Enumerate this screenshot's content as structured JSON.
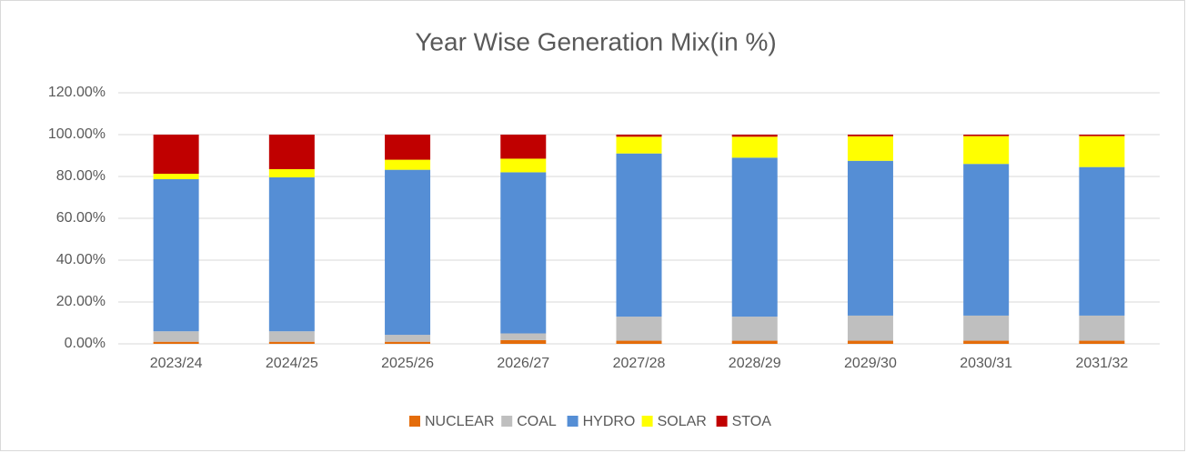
{
  "chart_data": {
    "type": "stacked_bar",
    "title": "Year Wise Generation Mix(in %)",
    "categories": [
      "2023/24",
      "2024/25",
      "2025/26",
      "2026/27",
      "2027/28",
      "2028/29",
      "2029/30",
      "2030/31",
      "2031/32"
    ],
    "series": [
      {
        "name": "NUCLEAR",
        "color": "#e46c0a",
        "values": [
          1,
          1,
          1,
          1.8,
          1.5,
          1.5,
          1.5,
          1.5,
          1.5
        ]
      },
      {
        "name": "COAL",
        "color": "#bfbfbf",
        "values": [
          5,
          5,
          3.3,
          3.2,
          11.5,
          11.5,
          12,
          12,
          12
        ]
      },
      {
        "name": "HYDRO",
        "color": "#558ed5",
        "values": [
          72.7,
          73.6,
          78.9,
          77,
          78,
          76,
          74,
          72.5,
          71
        ]
      },
      {
        "name": "SOLAR",
        "color": "#ffff00",
        "values": [
          2.6,
          3.9,
          4.8,
          6.5,
          8,
          10,
          11.7,
          13.3,
          14.8
        ]
      },
      {
        "name": "STOA",
        "color": "#c00000",
        "values": [
          18.7,
          16.5,
          12,
          11.5,
          1,
          1,
          0.8,
          0.7,
          0.7
        ]
      }
    ],
    "ylim": [
      0,
      120
    ],
    "yticks": [
      {
        "value": 0,
        "label": "0.00%"
      },
      {
        "value": 20,
        "label": "20.00%"
      },
      {
        "value": 40,
        "label": "40.00%"
      },
      {
        "value": 60,
        "label": "60.00%"
      },
      {
        "value": 80,
        "label": "80.00%"
      },
      {
        "value": 100,
        "label": "100.00%"
      },
      {
        "value": 120,
        "label": "120.00%"
      }
    ],
    "grid": true,
    "legend": "bottom"
  }
}
